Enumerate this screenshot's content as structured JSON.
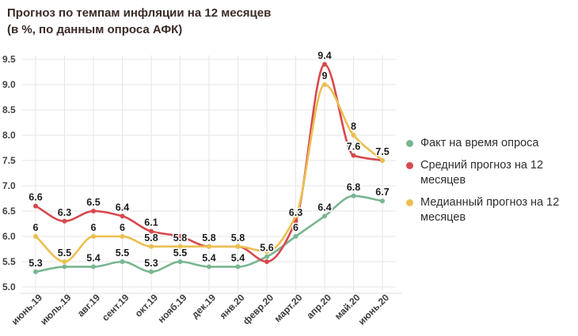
{
  "title": "Прогноз по темпам инфляции на 12 месяцев",
  "subtitle": "(в %, по данным опроса АФК)",
  "colors": {
    "fact": "#79b690",
    "mean_forecast": "#d7494e",
    "median_forecast": "#ebbf4f",
    "grid": "#e6e6e6",
    "axis_line": "#dcdcdc",
    "tick_text": "#424242",
    "data_label_text": "#1c1c1c",
    "title_text": "#3a2b27"
  },
  "chart_data": {
    "type": "line",
    "title": "Прогноз по темпам инфляции на 12 месяцев",
    "subtitle": "(в %, по данным опроса АФК)",
    "categories": [
      "июнь.19",
      "июль.19",
      "авг.19",
      "сент.19",
      "окт.19",
      "нояб.19",
      "дек.19",
      "янв.20",
      "февр.20",
      "март.20",
      "апр.20",
      "май.20",
      "июнь.20"
    ],
    "y_ticks": [
      "9.5",
      "9.0",
      "8.5",
      "8.0",
      "7.5",
      "7.0",
      "6.5",
      "6.0",
      "5.5",
      "5.0"
    ],
    "ylim": [
      5.0,
      9.5
    ],
    "grid": true,
    "legend_position": "right",
    "series": [
      {
        "name": "Факт на время опроса",
        "slug": "fact",
        "color": "#79b690",
        "values": [
          5.3,
          5.4,
          5.4,
          5.5,
          5.3,
          5.5,
          5.4,
          5.4,
          5.6,
          6,
          6.4,
          6.8,
          6.7
        ],
        "point_labels": [
          "5.3",
          null,
          "5.4",
          "5.5",
          "5.3",
          "5.5",
          "5.4",
          "5.4",
          "5.6",
          "6",
          "6.4",
          "6.8",
          "6.7"
        ]
      },
      {
        "name": "Средний прогноз на 12 месяцев",
        "slug": "mean-forecast",
        "color": "#d7494e",
        "values": [
          6.6,
          6.3,
          6.5,
          6.4,
          6.1,
          6,
          5.8,
          5.8,
          5.5,
          6.3,
          9.4,
          7.6,
          7.5
        ],
        "point_labels": [
          "6.6",
          "6.3",
          "6.5",
          "6.4",
          "6.1",
          null,
          null,
          null,
          null,
          "6.3",
          "9.4",
          "7.6",
          "7.5"
        ]
      },
      {
        "name": "Медианный прогноз на 12 месяцев",
        "slug": "median-forecast",
        "color": "#ebbf4f",
        "values": [
          6,
          5.5,
          6,
          6,
          5.8,
          5.8,
          5.8,
          5.8,
          5.7,
          6.4,
          9,
          8,
          7.5
        ],
        "point_labels": [
          "6",
          "5.5",
          "6",
          "6",
          "5.8",
          "5.8",
          "5.8",
          "5.8",
          null,
          null,
          "9",
          "8",
          null
        ]
      }
    ]
  }
}
